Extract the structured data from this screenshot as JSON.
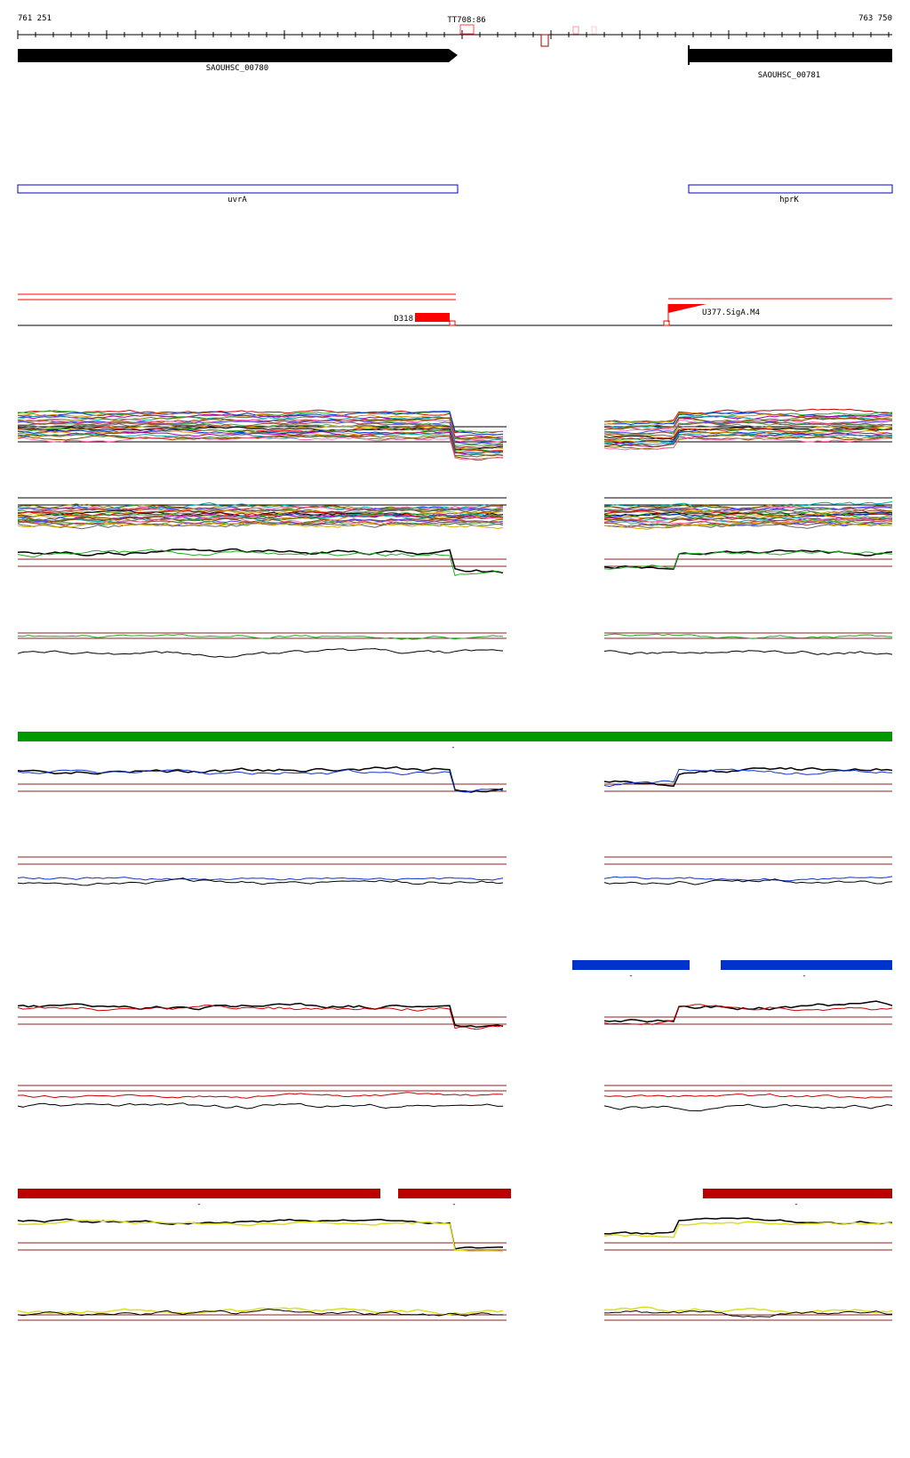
{
  "ruler": {
    "start": "761 251",
    "end": "763 750",
    "marker": "TT708:86"
  },
  "genes": [
    {
      "name": "SAOUHSC_00780",
      "strand": "+"
    },
    {
      "name": "SAOUHSC_00781",
      "strand": "+"
    }
  ],
  "operons": [
    {
      "name": "uvrA"
    },
    {
      "name": "hprK"
    }
  ],
  "regulatory": {
    "terminator": "D318",
    "promoter": "U377.SigA.M4"
  },
  "segment_labels": {
    "green_bar": "-",
    "blue_left": "-",
    "blue_right": "-",
    "red_1": "-",
    "red_2": "-",
    "red_3": "-"
  },
  "colors": {
    "gene": "#000000",
    "operon": "#0000cc",
    "regulatory": "#ff0000",
    "segment_green": "#009900",
    "segment_blue": "#0033cc",
    "segment_red": "#bb0000",
    "track_green": "#22aa22",
    "track_blue": "#1133cc",
    "track_red": "#cc0000",
    "track_yellow": "#dddd22",
    "baseline": "#8b2222"
  }
}
